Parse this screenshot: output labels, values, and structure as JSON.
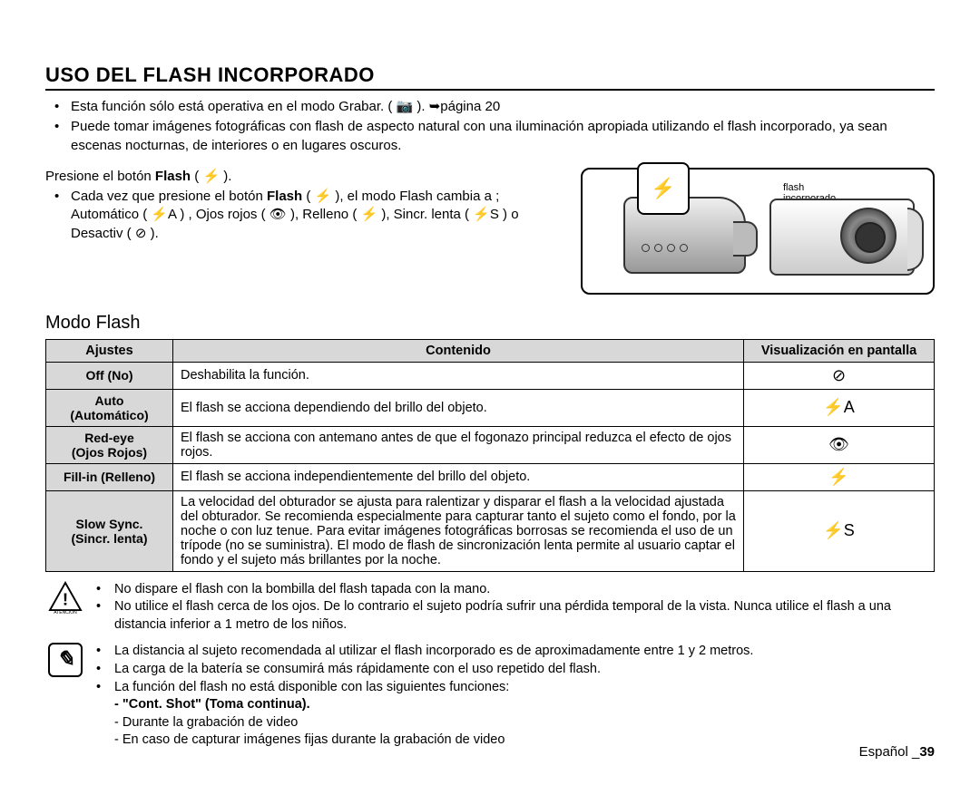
{
  "title": "USO DEL FLASH INCORPORADO",
  "intro": [
    "Esta función sólo está operativa en el modo Grabar. ( 📷 ). ➥página 20",
    "Puede tomar imágenes fotográficas con flash de aspecto natural con una iluminación apropiada utilizando el flash incorporado, ya sean escenas nocturnas, de interiores o en lugares oscuros."
  ],
  "press_line_a": "Presione el botón ",
  "press_line_b": "Flash",
  "press_line_c": " ( ⚡ ).",
  "sub_bullet_a": "Cada vez que presione el botón ",
  "sub_bullet_b": "Flash",
  "sub_bullet_c": " ( ⚡ ), el modo Flash cambia a ; Automático ( ⚡A ) , Ojos rojos ( 👁 ), Relleno ( ⚡ ), Sincr. lenta ( ⚡S ) o Desactiv ( ⊘ ).",
  "illustration": {
    "flash_label_1": "flash",
    "flash_label_2": "incorporado",
    "popup_icon": "⚡"
  },
  "section2_title": "Modo Flash",
  "table": {
    "headers": [
      "Ajustes",
      "Contenido",
      "Visualización en pantalla"
    ],
    "rows": [
      {
        "c0": "Off (No)",
        "c1": "Deshabilita la función.",
        "icon": "⊘"
      },
      {
        "c0": "Auto\n(Automático)",
        "c1": "El flash se acciona dependiendo del brillo del objeto.",
        "icon": "⚡A"
      },
      {
        "c0": "Red-eye\n(Ojos Rojos)",
        "c1": "El flash se acciona con antemano antes de que el fogonazo principal reduzca el efecto de ojos rojos.",
        "icon": "👁"
      },
      {
        "c0": "Fill-in (Relleno)",
        "c1": "El flash se acciona independientemente del brillo del objeto.",
        "icon": "⚡"
      },
      {
        "c0": "Slow Sync.\n(Sincr. lenta)",
        "c1": "La velocidad del obturador se ajusta para ralentizar y disparar el flash a la velocidad ajustada del obturador. Se recomienda especialmente para capturar tanto el sujeto como el fondo, por la noche o con luz tenue. Para evitar imágenes fotográficas borrosas se recomienda el uso de un trípode (no se suministra). El modo de flash de sincronización lenta permite al usuario captar el fondo y el sujeto más brillantes por la noche.",
        "icon": "⚡S"
      }
    ]
  },
  "warnings": [
    "No dispare el flash con la bombilla del flash tapada con la mano.",
    "No utilice el flash cerca de los ojos. De lo contrario el sujeto podría sufrir una pérdida temporal de la vista. Nunca utilice el flash a una distancia inferior a 1 metro de los niños."
  ],
  "warn_label": "ATENCIÓN",
  "notes": {
    "items": [
      "La distancia al sujeto recomendada al utilizar el flash incorporado es de aproximadamente entre 1 y 2 metros.",
      "La carga de la batería se consumirá más rápidamente con el uso repetido del flash.",
      "La función del flash no está disponible con las siguientes funciones:"
    ],
    "sub_bold": "- \"Cont. Shot\" (Toma continua).",
    "sub_items": [
      "- Durante la grabación de video",
      "- En caso de capturar imágenes fijas durante la grabación de video"
    ]
  },
  "footer": {
    "lang": "Español _",
    "page": "39"
  }
}
